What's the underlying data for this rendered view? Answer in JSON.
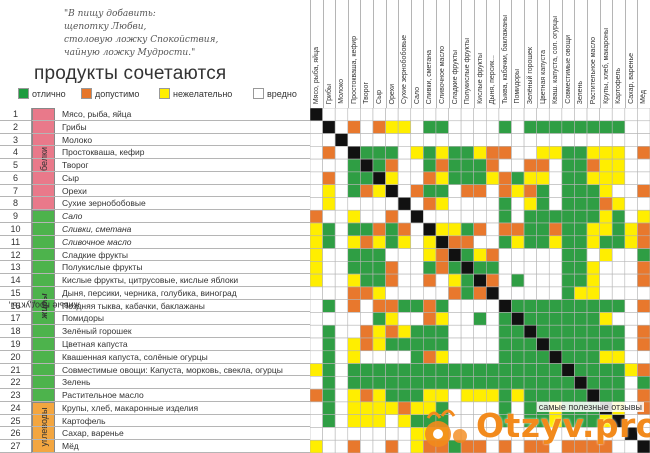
{
  "quote": "\"В пищу добавить:\n щепотку Любви,\n столовую ложку Спокойствия,\n чайную ложку Мудрости.\"",
  "title": "продукты сочетаются",
  "legend": [
    {
      "label": "отлично",
      "color": "#1e9b3f"
    },
    {
      "label": "допустимо",
      "color": "#e6762a"
    },
    {
      "label": "нежелательно",
      "color": "#ffee00"
    },
    {
      "label": "вредно",
      "color": "#ffffff"
    }
  ],
  "colors": {
    "G": "#2f9e44",
    "O": "#e8782d",
    "Y": "#ffee00",
    "W": "#ffffff",
    "K": "#111111"
  },
  "groups": [
    {
      "label": "белки",
      "label_prefix": "",
      "label_strong": "",
      "label_suffix": "",
      "color": "#e9798a",
      "rows": [
        1,
        8
      ]
    },
    {
      "label": "",
      "label_prefix": "живые продукты, ",
      "label_strong": "жиры",
      "label_suffix": "",
      "color": "#4db34c",
      "rows": [
        9,
        23
      ]
    },
    {
      "label": "углеводы",
      "label_prefix": "",
      "label_strong": "",
      "label_suffix": "",
      "color": "#f3a640",
      "rows": [
        24,
        27
      ]
    }
  ],
  "rows": [
    {
      "num": "1",
      "name": "Мясо, рыба, яйца",
      "italic": false
    },
    {
      "num": "2",
      "name": "Грибы",
      "italic": false
    },
    {
      "num": "3",
      "name": "Молоко",
      "italic": false
    },
    {
      "num": "4",
      "name": "Простокваша, кефир",
      "italic": false
    },
    {
      "num": "5",
      "name": "Творог",
      "italic": false
    },
    {
      "num": "6",
      "name": "Сыр",
      "italic": false
    },
    {
      "num": "7",
      "name": "Орехи",
      "italic": false
    },
    {
      "num": "8",
      "name": "Сухие зернобобовые",
      "italic": false
    },
    {
      "num": "9",
      "name": "Сало",
      "italic": true
    },
    {
      "num": "10",
      "name": "Сливки, сметана",
      "italic": true
    },
    {
      "num": "11",
      "name": "Сливочное масло",
      "italic": true
    },
    {
      "num": "12",
      "name": "Сладкие фрукты",
      "italic": false
    },
    {
      "num": "13",
      "name": "Полукислые фрукты",
      "italic": false
    },
    {
      "num": "14",
      "name": "Кислые фрукты, цитрусовые, кислые яблоки",
      "italic": false
    },
    {
      "num": "15",
      "name": "Дыня, персики, черника, голубика, виноград",
      "italic": false
    },
    {
      "num": "16",
      "name": "Поздняя тыква, кабачки, баклажаны",
      "italic": false
    },
    {
      "num": "17",
      "name": "Помидоры",
      "italic": false
    },
    {
      "num": "18",
      "name": "Зелёный горошек",
      "italic": false
    },
    {
      "num": "19",
      "name": "Цветная капуста",
      "italic": false
    },
    {
      "num": "20",
      "name": "Квашенная капуста, солёные огурцы",
      "italic": false
    },
    {
      "num": "21",
      "name": "Совместимые овощи: Капуста, морковь, свекла, огурцы",
      "italic": false
    },
    {
      "num": "22",
      "name": "Зелень",
      "italic": false
    },
    {
      "num": "23",
      "name": "Растительное масло",
      "italic": false
    },
    {
      "num": "24",
      "name": "Крупы, хлеб, макаронные изделия",
      "italic": false
    },
    {
      "num": "25",
      "name": "Картофель",
      "italic": false
    },
    {
      "num": "26",
      "name": "Сахар, варенье",
      "italic": false
    },
    {
      "num": "27",
      "name": "Мёд",
      "italic": false
    }
  ],
  "columns": [
    "Мясо, рыба, яйца",
    "Грибы",
    "Молоко",
    "Простокваша, кефир",
    "Творог",
    "Сыр",
    "Орехи",
    "Сухие зернобобовые",
    "Сало",
    "Сливки, сметана",
    "Сливочное масло",
    "Сладкие фрукты",
    "Полукислые фрукты",
    "Кислые фрукты",
    "Дыня, персик...",
    "Тыква, кабачки, баклажаны",
    "Помидоры",
    "Зелёный горошек",
    "Цветная капуста",
    "Кваш. капуста, сол. огурцы",
    "Совместимые овощи",
    "Зелень",
    "Растительное масло",
    "Крупы, хлеб, макароны",
    "Картофель",
    "Сахар, варенье",
    "Мёд"
  ],
  "matrix": [
    "KWWWWWWWWWWWWWWWWWWWWWWWWWW",
    "WKWOWOYYWGGWWWWGWGGGGGGGGWW",
    "WWKWWWWWWWWWWWWWWWWWWWWWWWW",
    "WOWKGGGWYGYGGYOOWWYYGGYYYWO",
    "WWWGKGOWWGOGGGOWWOOWGGOYYWW",
    "WOWGGKYWWOYGGGYOGYYWGGYYYWW",
    "WYWGOYKWOGGWOOWOYOGWGGGYWWO",
    "WYWWWWWKWOYWWWWGWYGWGGGOYWW",
    "OWWYWWOWKWWWWWWGWGGGGGGYGWY",
    "YGWGGOGOWKYYGOWOOGGOGGYYGYO",
    "YGWYOYGYWYKOOWWGYGGYGGYGGYO",
    "YWWGGGWWWYOKGYOWWWWWGGWYWWG",
    "YWWGGGOWWGOGKGGWWWWWGGYWWWO",
    "YWWYGGOWWOWYGKOWGWWWGGYWWWO",
    "WWWOOYWWWWWOGOKWWWWWGYYWWWW",
    "WGWOWOOGGOGWWWWKGGGGGGGGGWO",
    "WWWWWGYWWOYWWGWGKGGGGGGYWWW",
    "WGWWOYOYGGGWWWWGGKGGGGGGGWO",
    "WGWYOYGGGGGWWWWGGGKGGGGGGWO",
    "WGWYWWWWGOYWWWWGGGGKGGGYYWW",
    "YGWGGGGGGGGGGGGGGGGGKGGGGYO",
    "WGWGGGGGGGGGGGGGGGGGGKGGGWG",
    "OGWYOYGGGYYWYYYGYGGGGGKGGWO",
    "WGWYYYYOYYGWWWWGWGGYGGGKYWO",
    "WGWYYYWYGGGWWWWGWGGYGGGYKWW",
    "WWWWWWWWYYYWWWWWWWWWWWWWWKW",
    "YWWOWWOWYOOGOOWOWOOWOOOOWWK"
  ],
  "watermark": {
    "caption": "самые полезные отзывы",
    "brand": "Otzyv.pro"
  }
}
